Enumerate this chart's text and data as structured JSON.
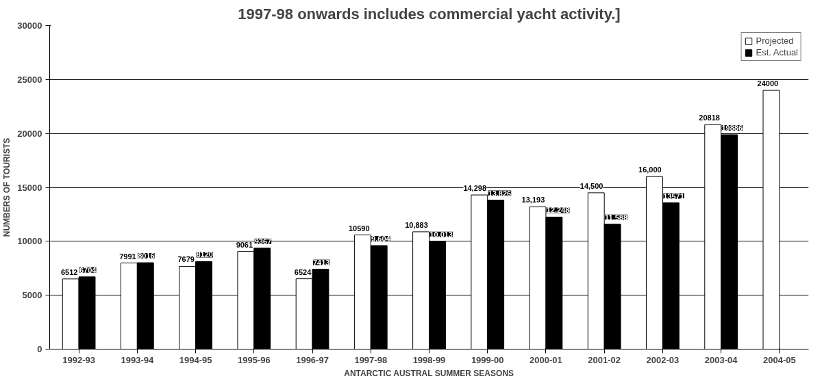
{
  "chart_data": {
    "type": "bar",
    "title": "1997-98 onwards includes commercial yacht activity.]",
    "xlabel": "ANTARCTIC AUSTRAL SUMMER SEASONS",
    "ylabel": "NUMBERS OF TOURISTS",
    "categories": [
      "1992-93",
      "1993-94",
      "1994-95",
      "1995-96",
      "1996-97",
      "1997-98",
      "1998-99",
      "1999-00",
      "2000-01",
      "2001-02",
      "2002-03",
      "2003-04",
      "2004-05"
    ],
    "series": [
      {
        "name": "Projected",
        "color": "#ffffff",
        "values": [
          6512,
          7991,
          7679,
          9061,
          6524,
          10590,
          10883,
          14298,
          13193,
          14500,
          16000,
          20818,
          24000
        ],
        "value_labels": [
          "6512",
          "7991",
          "7679",
          "9061",
          "6524",
          "10590",
          "10,883",
          "14,298",
          "13,193",
          "14,500",
          "16,000",
          "20818",
          "24000"
        ]
      },
      {
        "name": "Est. Actual",
        "color": "#000000",
        "values": [
          6704,
          8016,
          8120,
          9367,
          7413,
          9604,
          10013,
          13826,
          12248,
          11588,
          13571,
          19886,
          null
        ],
        "value_labels": [
          "6704",
          "8016",
          "8120",
          "9367",
          "7413",
          "9,604",
          "10,013",
          "13,826",
          "12,248",
          "11,588",
          "13571",
          "19886",
          null
        ]
      }
    ],
    "ylim": [
      0,
      30000
    ],
    "yticks": [
      0,
      5000,
      10000,
      15000,
      20000,
      25000,
      30000
    ],
    "grid": "y",
    "legend": "top right"
  }
}
